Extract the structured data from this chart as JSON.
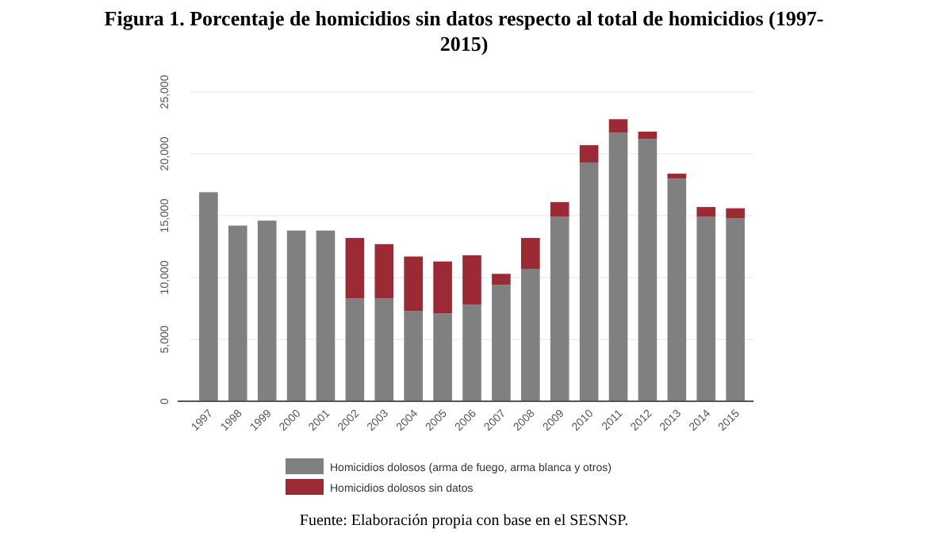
{
  "chart_data": {
    "type": "bar",
    "title": "Figura 1. Porcentaje de homicidios sin datos respecto al total de homicidios (1997-2015)",
    "categories": [
      "1997",
      "1998",
      "1999",
      "2000",
      "2001",
      "2002",
      "2003",
      "2004",
      "2005",
      "2006",
      "2007",
      "2008",
      "2009",
      "2010",
      "2011",
      "2012",
      "2013",
      "2014",
      "2015"
    ],
    "series": [
      {
        "name": "Homicidios dolosos (arma de fuego, arma blanca y otros)",
        "color": "#808080",
        "values": [
          16900,
          14200,
          14600,
          13800,
          13800,
          8300,
          8300,
          7300,
          7100,
          7800,
          9400,
          10700,
          14900,
          19300,
          21700,
          21200,
          18000,
          14900,
          14800
        ]
      },
      {
        "name": "Homicidios dolosos sin datos",
        "color": "#9b2a35",
        "values": [
          null,
          null,
          null,
          null,
          null,
          4900,
          4400,
          4400,
          4200,
          4000,
          900,
          2500,
          1200,
          1400,
          1100,
          600,
          400,
          800,
          800
        ]
      }
    ],
    "stacked": true,
    "ylim": [
      0,
      25000
    ],
    "yticks": [
      {
        "value": 0,
        "label": "0"
      },
      {
        "value": 5000,
        "label": "5,000"
      },
      {
        "value": 10000,
        "label": "10,000"
      },
      {
        "value": 15000,
        "label": "15,000"
      },
      {
        "value": 20000,
        "label": "20,000"
      },
      {
        "value": 25000,
        "label": "25,000"
      }
    ],
    "grid": "y",
    "legend": "bottom",
    "annotations": [
      "Fuente: Elaboración propia con base en el SESNSP."
    ]
  }
}
